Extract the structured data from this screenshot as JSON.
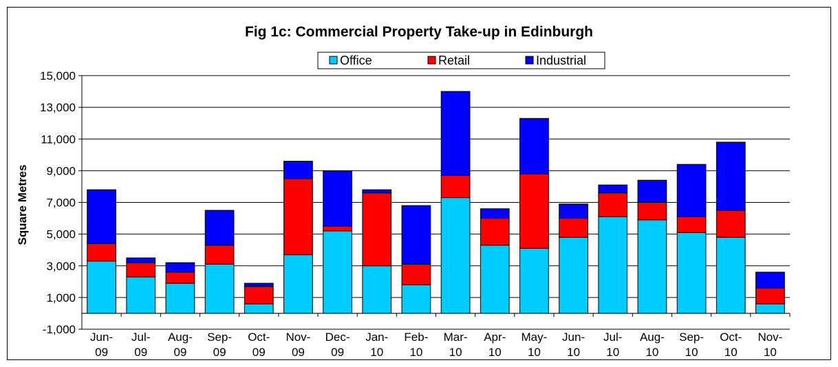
{
  "chart_data": {
    "type": "bar",
    "stacked": true,
    "title": "Fig 1c: Commercial Property Take-up in Edinburgh",
    "xlabel": "",
    "ylabel": "Square Metres",
    "ylim": [
      -1000,
      15000
    ],
    "yticks": [
      -1000,
      1000,
      3000,
      5000,
      7000,
      9000,
      11000,
      13000,
      15000
    ],
    "ytick_labels": [
      "-1,000",
      "1,000",
      "3,000",
      "5,000",
      "7,000",
      "9,000",
      "11,000",
      "13,000",
      "15,000"
    ],
    "grid": true,
    "legend_position": "top",
    "categories": [
      [
        "Jun-",
        "09"
      ],
      [
        "Jul-",
        "09"
      ],
      [
        "Aug-",
        "09"
      ],
      [
        "Sep-",
        "09"
      ],
      [
        "Oct-",
        "09"
      ],
      [
        "Nov-",
        "09"
      ],
      [
        "Dec-",
        "09"
      ],
      [
        "Jan-",
        "10"
      ],
      [
        "Feb-",
        "10"
      ],
      [
        "Mar-",
        "10"
      ],
      [
        "Apr-",
        "10"
      ],
      [
        "May-",
        "10"
      ],
      [
        "Jun-",
        "10"
      ],
      [
        "Jul-",
        "10"
      ],
      [
        "Aug-",
        "10"
      ],
      [
        "Sep-",
        "10"
      ],
      [
        "Oct-",
        "10"
      ],
      [
        "Nov-",
        "10"
      ]
    ],
    "series": [
      {
        "name": "Office",
        "color": "#00ccff",
        "values": [
          3300,
          2300,
          1900,
          3100,
          600,
          3700,
          5200,
          3000,
          1800,
          7300,
          4300,
          4100,
          4800,
          6100,
          5900,
          5100,
          4800,
          600
        ]
      },
      {
        "name": "Retail",
        "color": "#ff0000",
        "values": [
          1100,
          900,
          700,
          1200,
          1100,
          4800,
          300,
          4600,
          1300,
          1400,
          1700,
          4700,
          1200,
          1500,
          1100,
          1000,
          1700,
          1000
        ]
      },
      {
        "name": "Industrial",
        "color": "#0000ff",
        "values": [
          3400,
          300,
          600,
          2200,
          200,
          1100,
          3500,
          200,
          3700,
          5300,
          600,
          3500,
          900,
          500,
          1400,
          3300,
          4300,
          1000
        ]
      }
    ]
  }
}
